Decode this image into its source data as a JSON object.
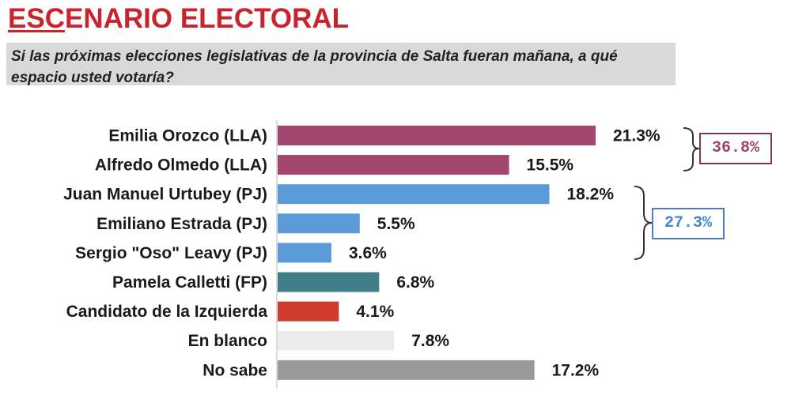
{
  "title": {
    "part_underlined": "ESC",
    "part_rest": "ENARIO ELECTORAL",
    "color": "#c9232e"
  },
  "question": "Si las próximas elecciones legislativas de la provincia de Salta fueran mañana, a qué espacio usted votaría?",
  "groups": [
    {
      "label": "36.8%",
      "color": "#a0416f"
    },
    {
      "label": "27.3%",
      "color": "#3f86cf"
    }
  ],
  "chart_data": {
    "type": "bar",
    "orientation": "horizontal",
    "categories": [
      "Emilia Orozco (LLA)",
      "Alfredo Olmedo (LLA)",
      "Juan Manuel Urtubey (PJ)",
      "Emiliano Estrada (PJ)",
      "Sergio \"Oso\" Leavy (PJ)",
      "Pamela Calletti (FP)",
      "Candidato de la Izquierda",
      "En blanco",
      "No sabe"
    ],
    "values": [
      21.3,
      15.5,
      18.2,
      5.5,
      3.6,
      6.8,
      4.1,
      7.8,
      17.2
    ],
    "value_labels": [
      "21.3%",
      "15.5%",
      "18.2%",
      "5.5%",
      "3.6%",
      "6.8%",
      "4.1%",
      "7.8%",
      "17.2%"
    ],
    "colors": [
      "#a2466f",
      "#a2466f",
      "#5b9bd8",
      "#5b9bd8",
      "#5b9bd8",
      "#3e7f88",
      "#cf3b2c",
      "#ececec",
      "#999999"
    ],
    "xlim": [
      0,
      21.3
    ]
  }
}
